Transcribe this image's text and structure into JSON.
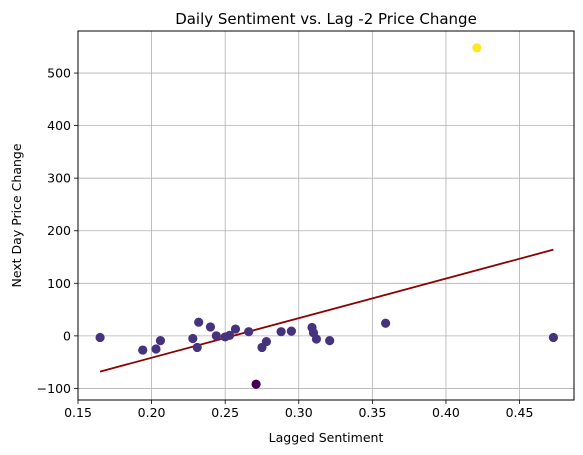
{
  "chart_data": {
    "type": "scatter",
    "title": "Daily Sentiment vs. Lag -2 Price Change",
    "xlabel": "Lagged Sentiment",
    "ylabel": "Next Day Price Change",
    "xlim": [
      0.15,
      0.487
    ],
    "ylim": [
      -122,
      580
    ],
    "x_ticks": [
      0.15,
      0.2,
      0.25,
      0.3,
      0.35,
      0.4,
      0.45
    ],
    "x_tick_labels": [
      "0.15",
      "0.20",
      "0.25",
      "0.30",
      "0.35",
      "0.40",
      "0.45"
    ],
    "y_ticks": [
      -100,
      0,
      100,
      200,
      300,
      400,
      500
    ],
    "y_tick_labels": [
      "−100",
      "0",
      "100",
      "200",
      "300",
      "400",
      "500"
    ],
    "grid": true,
    "colormap": "viridis",
    "points": [
      {
        "x": 0.165,
        "y": -3,
        "c": 0.15
      },
      {
        "x": 0.194,
        "y": -27,
        "c": 0.15
      },
      {
        "x": 0.203,
        "y": -25,
        "c": 0.15
      },
      {
        "x": 0.206,
        "y": -9,
        "c": 0.15
      },
      {
        "x": 0.228,
        "y": -5,
        "c": 0.15
      },
      {
        "x": 0.231,
        "y": -22,
        "c": 0.15
      },
      {
        "x": 0.232,
        "y": 26,
        "c": 0.15
      },
      {
        "x": 0.24,
        "y": 17,
        "c": 0.15
      },
      {
        "x": 0.244,
        "y": 0,
        "c": 0.15
      },
      {
        "x": 0.25,
        "y": -2,
        "c": 0.15
      },
      {
        "x": 0.253,
        "y": 1,
        "c": 0.15
      },
      {
        "x": 0.257,
        "y": 13,
        "c": 0.15
      },
      {
        "x": 0.266,
        "y": 8,
        "c": 0.15
      },
      {
        "x": 0.271,
        "y": -92,
        "c": 0.0
      },
      {
        "x": 0.275,
        "y": -22,
        "c": 0.15
      },
      {
        "x": 0.278,
        "y": -11,
        "c": 0.15
      },
      {
        "x": 0.288,
        "y": 8,
        "c": 0.15
      },
      {
        "x": 0.295,
        "y": 9,
        "c": 0.15
      },
      {
        "x": 0.309,
        "y": 16,
        "c": 0.15
      },
      {
        "x": 0.31,
        "y": 6,
        "c": 0.15
      },
      {
        "x": 0.312,
        "y": -6,
        "c": 0.15
      },
      {
        "x": 0.321,
        "y": -9,
        "c": 0.15
      },
      {
        "x": 0.359,
        "y": 24,
        "c": 0.15
      },
      {
        "x": 0.421,
        "y": 548,
        "c": 1.0
      },
      {
        "x": 0.473,
        "y": -3,
        "c": 0.15
      }
    ],
    "regression_line": {
      "x": [
        0.165,
        0.473
      ],
      "y": [
        -68,
        164
      ],
      "color": "#8b0000"
    },
    "colors": {
      "low": "#440154",
      "mid": "#46337e",
      "high": "#fde725",
      "grid": "#b0b0b0"
    }
  }
}
